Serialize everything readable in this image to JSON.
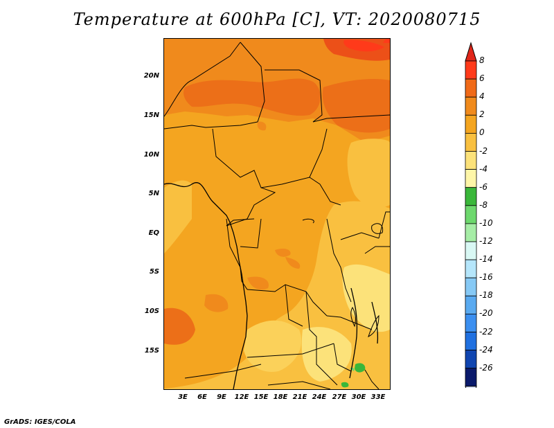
{
  "title": "Temperature at 600hPa [C], VT: 2020080715",
  "credit": "GrADS: IGES/COLA",
  "map": {
    "y_ticks": [
      "20N",
      "15N",
      "10N",
      "5N",
      "EQ",
      "5S",
      "10S",
      "15S"
    ],
    "x_ticks": [
      "3E",
      "6E",
      "9E",
      "12E",
      "15E",
      "18E",
      "21E",
      "24E",
      "27E",
      "30E",
      "33E"
    ]
  },
  "colorbar": {
    "labels": [
      "8",
      "6",
      "4",
      "2",
      "0",
      "-2",
      "-4",
      "-6",
      "-8",
      "-10",
      "-12",
      "-14",
      "-16",
      "-18",
      "-20",
      "-22",
      "-24",
      "-26"
    ],
    "colors": [
      "#ff3a1a",
      "#f06a18",
      "#f08a1c",
      "#f4a520",
      "#f9c040",
      "#fce27a",
      "#fef6a8",
      "#3ab73a",
      "#6dd86d",
      "#a6eda6",
      "#d9f8f4",
      "#b5e6fb",
      "#86c9f5",
      "#5aaaf0",
      "#3b8ff0",
      "#2070e0",
      "#1045b0",
      "#0a1a6b"
    ],
    "top_arrow_color": "#e0261a",
    "bottom_arrow_color": "#dbe4fb"
  }
}
